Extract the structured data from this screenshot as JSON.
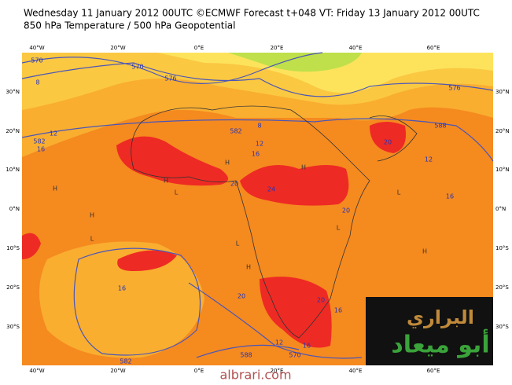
{
  "header": {
    "line1": "Wednesday 11 January 2012 00UTC ©ECMWF Forecast t+048 VT: Friday 13 January 2012 00UTC",
    "line2": "850 hPa Temperature / 500 hPa Geopotential"
  },
  "map": {
    "lon_labels": [
      "40°W",
      "20°W",
      "0°E",
      "20°E",
      "40°E",
      "60°E"
    ],
    "lat_labels": [
      "30°N",
      "20°N",
      "10°N",
      "0°N",
      "10°S",
      "20°S",
      "30°S"
    ],
    "contour_labels": [
      570,
      8,
      570,
      576,
      576,
      582,
      8,
      12,
      16,
      12,
      16,
      582,
      20,
      588,
      12,
      16,
      24,
      20,
      20,
      16,
      20,
      20,
      16,
      16,
      12,
      570,
      582,
      588
    ],
    "pressure_labels": [
      "H",
      "H",
      "H",
      "L",
      "L",
      "H",
      "L",
      "H",
      "L",
      "H",
      "H",
      "L"
    ]
  },
  "watermark": {
    "line1": "البراري",
    "line2": "أبو ميعاد",
    "site": "albrari.com"
  }
}
